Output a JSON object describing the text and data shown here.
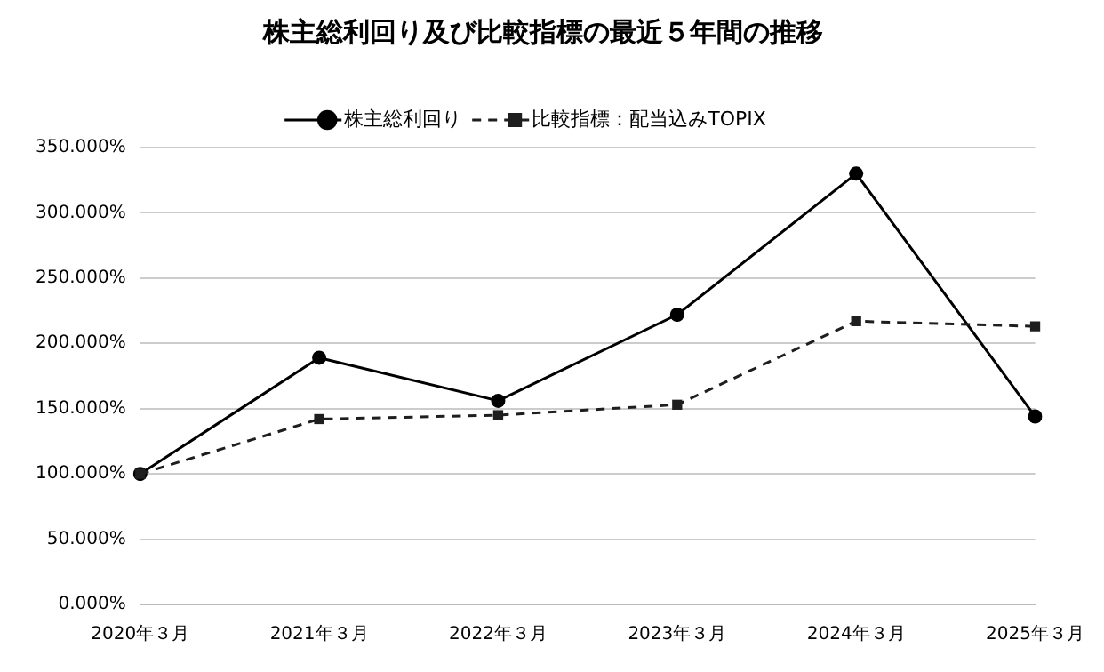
{
  "chart_data": {
    "type": "line",
    "title": "株主総利回り及び比較指標の最近５年間の推移",
    "categories": [
      "2020年３月",
      "2021年３月",
      "2022年３月",
      "2023年３月",
      "2024年３月",
      "2025年３月"
    ],
    "series": [
      {
        "name": "株主総利回り",
        "color": "#000000",
        "values": [
          100,
          189,
          156,
          222,
          330,
          144
        ],
        "marker": "circle",
        "line_style": "solid"
      },
      {
        "name": "比較指標：配当込みTOPIX",
        "color": "#1e1e1e",
        "values": [
          100,
          142,
          145,
          153,
          217,
          213
        ],
        "marker": "square",
        "line_style": "dashed"
      }
    ],
    "ylim": [
      0,
      350
    ],
    "yticks": [
      {
        "value": 0,
        "label": "0.000%"
      },
      {
        "value": 50,
        "label": "50.000%"
      },
      {
        "value": 100,
        "label": "100.000%"
      },
      {
        "value": 150,
        "label": "150.000%"
      },
      {
        "value": 200,
        "label": "200.000%"
      },
      {
        "value": 250,
        "label": "250.000%"
      },
      {
        "value": 300,
        "label": "300.000%"
      },
      {
        "value": 350,
        "label": "350.000%"
      }
    ],
    "grid": "y",
    "legend": "top"
  }
}
